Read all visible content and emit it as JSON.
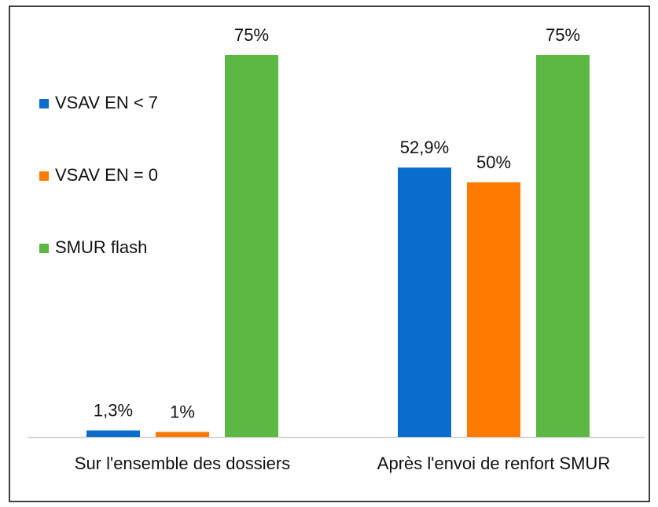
{
  "chart_data": {
    "type": "bar",
    "categories": [
      "Sur l'ensemble des dossiers",
      "Après l'envoi de renfort SMUR"
    ],
    "series": [
      {
        "name": "VSAV EN < 7",
        "color": "#0a6ccd",
        "values": [
          1.3,
          52.9
        ],
        "value_labels": [
          "1,3%",
          "52,9%"
        ]
      },
      {
        "name": "VSAV EN = 0",
        "color": "#ff7b00",
        "values": [
          1,
          50
        ],
        "value_labels": [
          "1%",
          "50%"
        ]
      },
      {
        "name": "SMUR flash",
        "color": "#5db843",
        "values": [
          75,
          75
        ],
        "value_labels": [
          "75%",
          "75%"
        ]
      }
    ],
    "legend": "left",
    "grid": false
  }
}
